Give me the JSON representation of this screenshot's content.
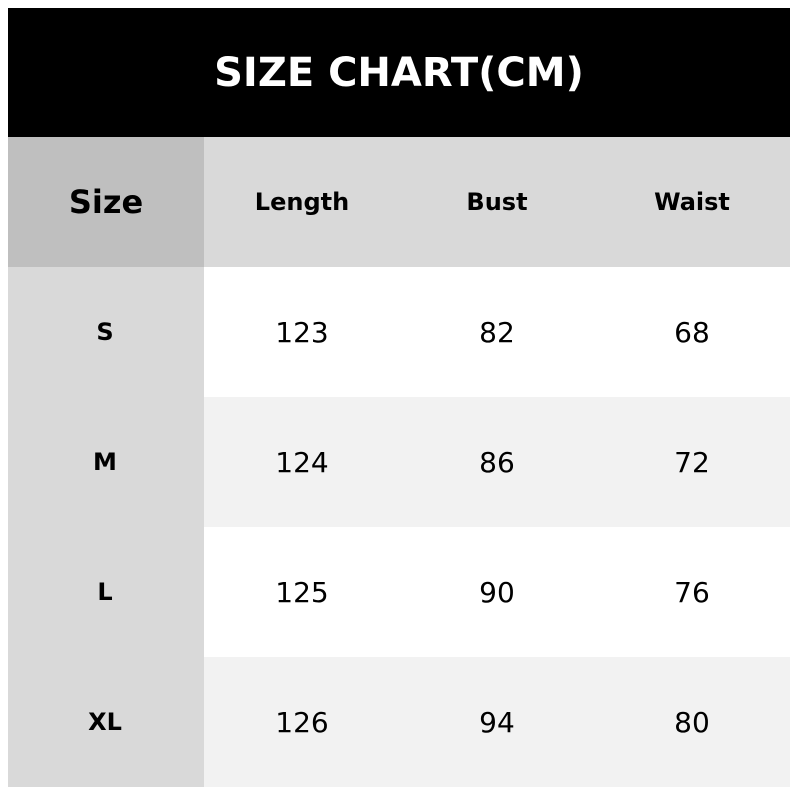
{
  "title": "SIZE CHART(CM)",
  "headers": [
    "Size",
    "Length",
    "Bust",
    "Waist"
  ],
  "rows": [
    {
      "size": "S",
      "length": "123",
      "bust": "82",
      "waist": "68"
    },
    {
      "size": "M",
      "length": "124",
      "bust": "86",
      "waist": "72"
    },
    {
      "size": "L",
      "length": "125",
      "bust": "90",
      "waist": "76"
    },
    {
      "size": "XL",
      "length": "126",
      "bust": "94",
      "waist": "80"
    }
  ],
  "colors": {
    "title_bg": "#000000",
    "size_header_bg": "#bfbfbf",
    "header_bg": "#d9d9d9",
    "size_col_bg": "#d9d9d9",
    "row_alt_bg": "#f2f2f2"
  }
}
